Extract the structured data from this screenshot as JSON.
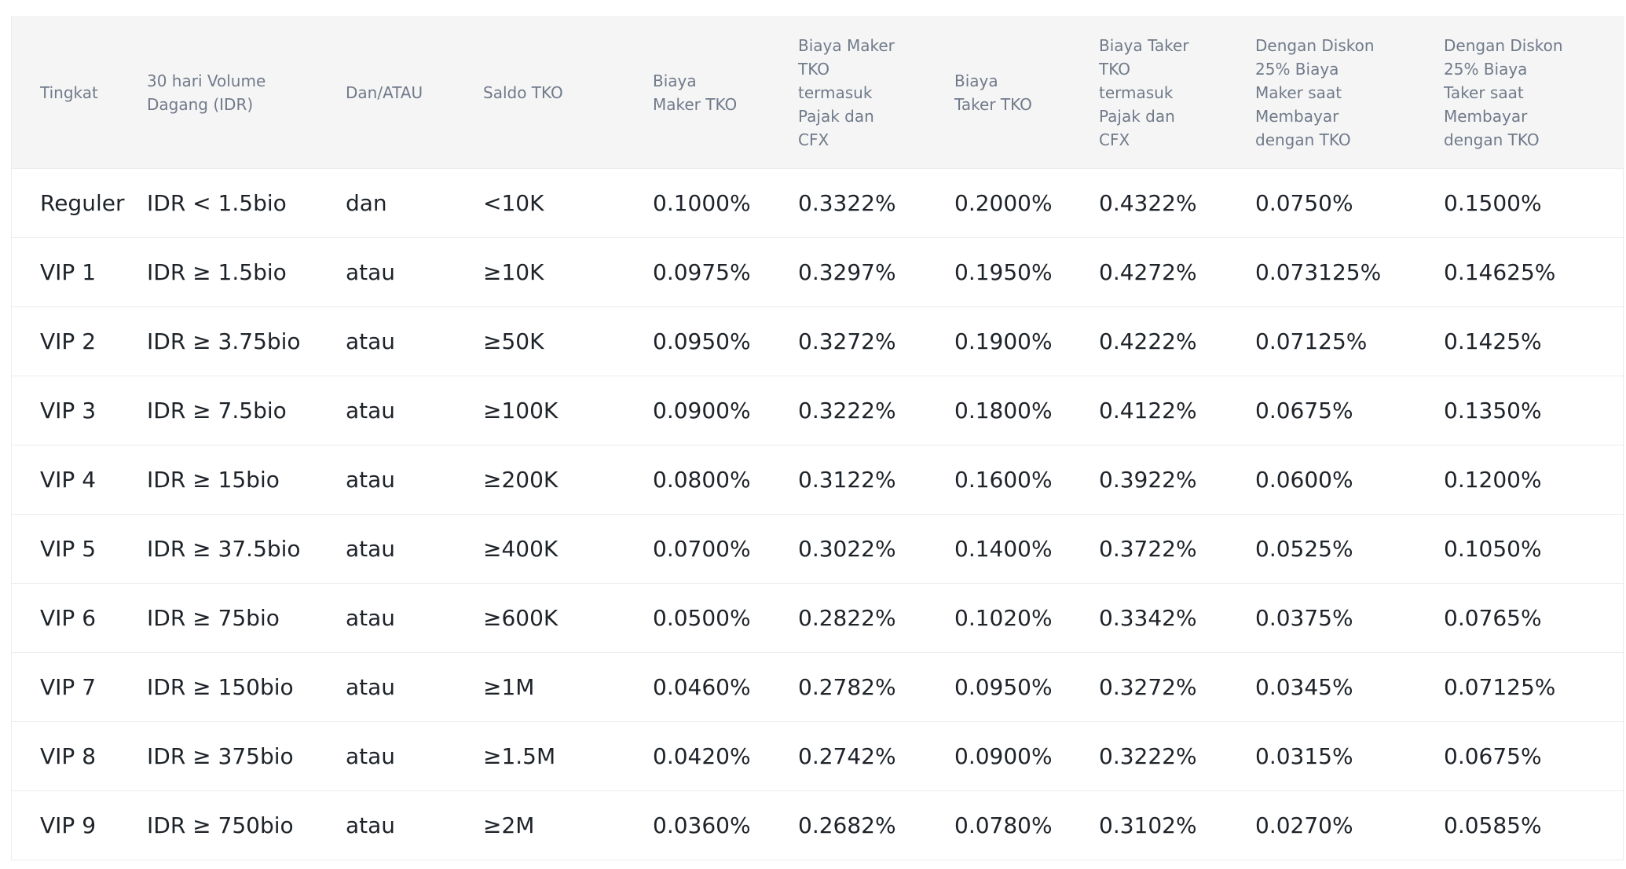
{
  "table": {
    "headers": [
      {
        "lines": [
          "Tingkat"
        ]
      },
      {
        "lines": [
          "30 hari Volume",
          "Dagang (IDR)"
        ]
      },
      {
        "lines": [
          "Dan/ATAU"
        ]
      },
      {
        "lines": [
          "Saldo TKO"
        ]
      },
      {
        "lines": [
          "Biaya",
          "Maker TKO"
        ]
      },
      {
        "lines": [
          "Biaya Maker",
          "TKO",
          "termasuk",
          "Pajak dan",
          "CFX"
        ]
      },
      {
        "lines": [
          "Biaya",
          "Taker TKO"
        ]
      },
      {
        "lines": [
          "Biaya Taker",
          "TKO",
          "termasuk",
          "Pajak dan",
          "CFX"
        ]
      },
      {
        "lines": [
          "Dengan Diskon",
          "25% Biaya",
          "Maker saat",
          "Membayar",
          "dengan TKO"
        ]
      },
      {
        "lines": [
          "Dengan Diskon",
          "25% Biaya",
          "Taker saat",
          "Membayar",
          "dengan TKO"
        ]
      }
    ],
    "rows": [
      [
        "Reguler",
        "IDR < 1.5bio",
        "dan",
        "<10K",
        "0.1000%",
        "0.3322%",
        "0.2000%",
        "0.4322%",
        "0.0750%",
        "0.1500%"
      ],
      [
        "VIP 1",
        "IDR ≥ 1.5bio",
        "atau",
        "≥10K",
        "0.0975%",
        "0.3297%",
        "0.1950%",
        "0.4272%",
        "0.073125%",
        "0.14625%"
      ],
      [
        "VIP 2",
        "IDR ≥ 3.75bio",
        "atau",
        "≥50K",
        "0.0950%",
        "0.3272%",
        "0.1900%",
        "0.4222%",
        "0.07125%",
        "0.1425%"
      ],
      [
        "VIP 3",
        "IDR ≥ 7.5bio",
        "atau",
        "≥100K",
        "0.0900%",
        "0.3222%",
        "0.1800%",
        "0.4122%",
        "0.0675%",
        "0.1350%"
      ],
      [
        "VIP 4",
        "IDR ≥ 15bio",
        "atau",
        "≥200K",
        "0.0800%",
        "0.3122%",
        "0.1600%",
        "0.3922%",
        "0.0600%",
        "0.1200%"
      ],
      [
        "VIP 5",
        "IDR ≥ 37.5bio",
        "atau",
        "≥400K",
        "0.0700%",
        "0.3022%",
        "0.1400%",
        "0.3722%",
        "0.0525%",
        "0.1050%"
      ],
      [
        "VIP 6",
        "IDR ≥ 75bio",
        "atau",
        "≥600K",
        "0.0500%",
        "0.2822%",
        "0.1020%",
        "0.3342%",
        "0.0375%",
        "0.0765%"
      ],
      [
        "VIP 7",
        "IDR ≥ 150bio",
        "atau",
        "≥1M",
        "0.0460%",
        "0.2782%",
        "0.0950%",
        "0.3272%",
        "0.0345%",
        "0.07125%"
      ],
      [
        "VIP 8",
        "IDR ≥ 375bio",
        "atau",
        "≥1.5M",
        "0.0420%",
        "0.2742%",
        "0.0900%",
        "0.3222%",
        "0.0315%",
        "0.0675%"
      ],
      [
        "VIP 9",
        "IDR ≥ 750bio",
        "atau",
        "≥2M",
        "0.0360%",
        "0.2682%",
        "0.0780%",
        "0.3102%",
        "0.0270%",
        "0.0585%"
      ]
    ]
  }
}
